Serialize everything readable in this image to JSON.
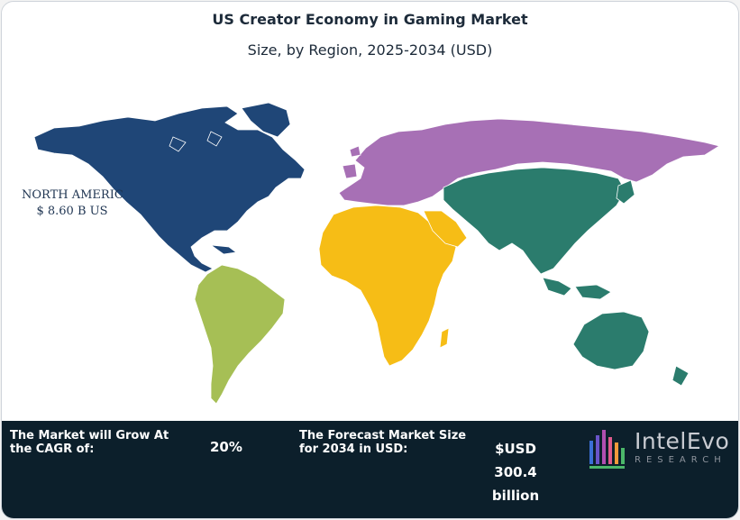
{
  "header": {
    "title": "US Creator Economy in Gaming Market",
    "subtitle": "Size, by Region, 2025-2034 (USD)"
  },
  "map": {
    "highlight": {
      "name": "NORTH AMERICA",
      "label_line1": "NORTH AMERICA",
      "label_line2": "$ 8.60 B US"
    },
    "region_colors": {
      "north_america": "#1f4677",
      "south_america": "#a6bf55",
      "europe": "#a770b5",
      "africa": "#f6bd16",
      "asia_pacific": "#2b7c6d"
    }
  },
  "footer": {
    "cagr_label": "The Market will Grow At the CAGR of:",
    "cagr_value": "20%",
    "size_label": "The Forecast Market Size for 2034 in USD:",
    "size_value_line1": "$USD",
    "size_value_line2": "300.4",
    "size_value_line3": "billion",
    "background": "#0c1f2b"
  },
  "logo": {
    "name": "IntelEvo",
    "tagline": "RESEARCH"
  }
}
